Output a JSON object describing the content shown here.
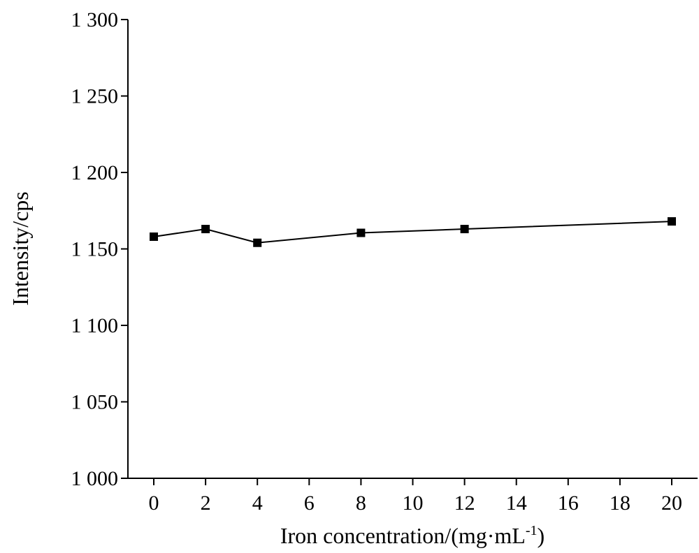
{
  "chart_data": {
    "type": "line",
    "title": "",
    "xlabel": "Iron concentration/(mg·mL",
    "xlabel_superscript": "-1",
    "xlabel_close": ")",
    "ylabel": "Intensity/cps",
    "xlim": [
      -1,
      21
    ],
    "ylim": [
      1000,
      1300
    ],
    "x_ticks": [
      0,
      2,
      4,
      6,
      8,
      10,
      12,
      14,
      16,
      18,
      20
    ],
    "x_tick_labels": [
      "0",
      "2",
      "4",
      "6",
      "8",
      "10",
      "12",
      "14",
      "16",
      "18",
      "20"
    ],
    "y_ticks": [
      1000,
      1050,
      1100,
      1150,
      1200,
      1250,
      1300
    ],
    "y_tick_labels": [
      "1 000",
      "1 050",
      "1 100",
      "1 150",
      "1 200",
      "1 250",
      "1 300"
    ],
    "grid": false,
    "marker": "square",
    "series": [
      {
        "x": [
          0,
          2,
          4,
          8,
          12,
          20
        ],
        "y": [
          1158,
          1163,
          1154,
          1160.5,
          1163,
          1168
        ]
      }
    ]
  }
}
